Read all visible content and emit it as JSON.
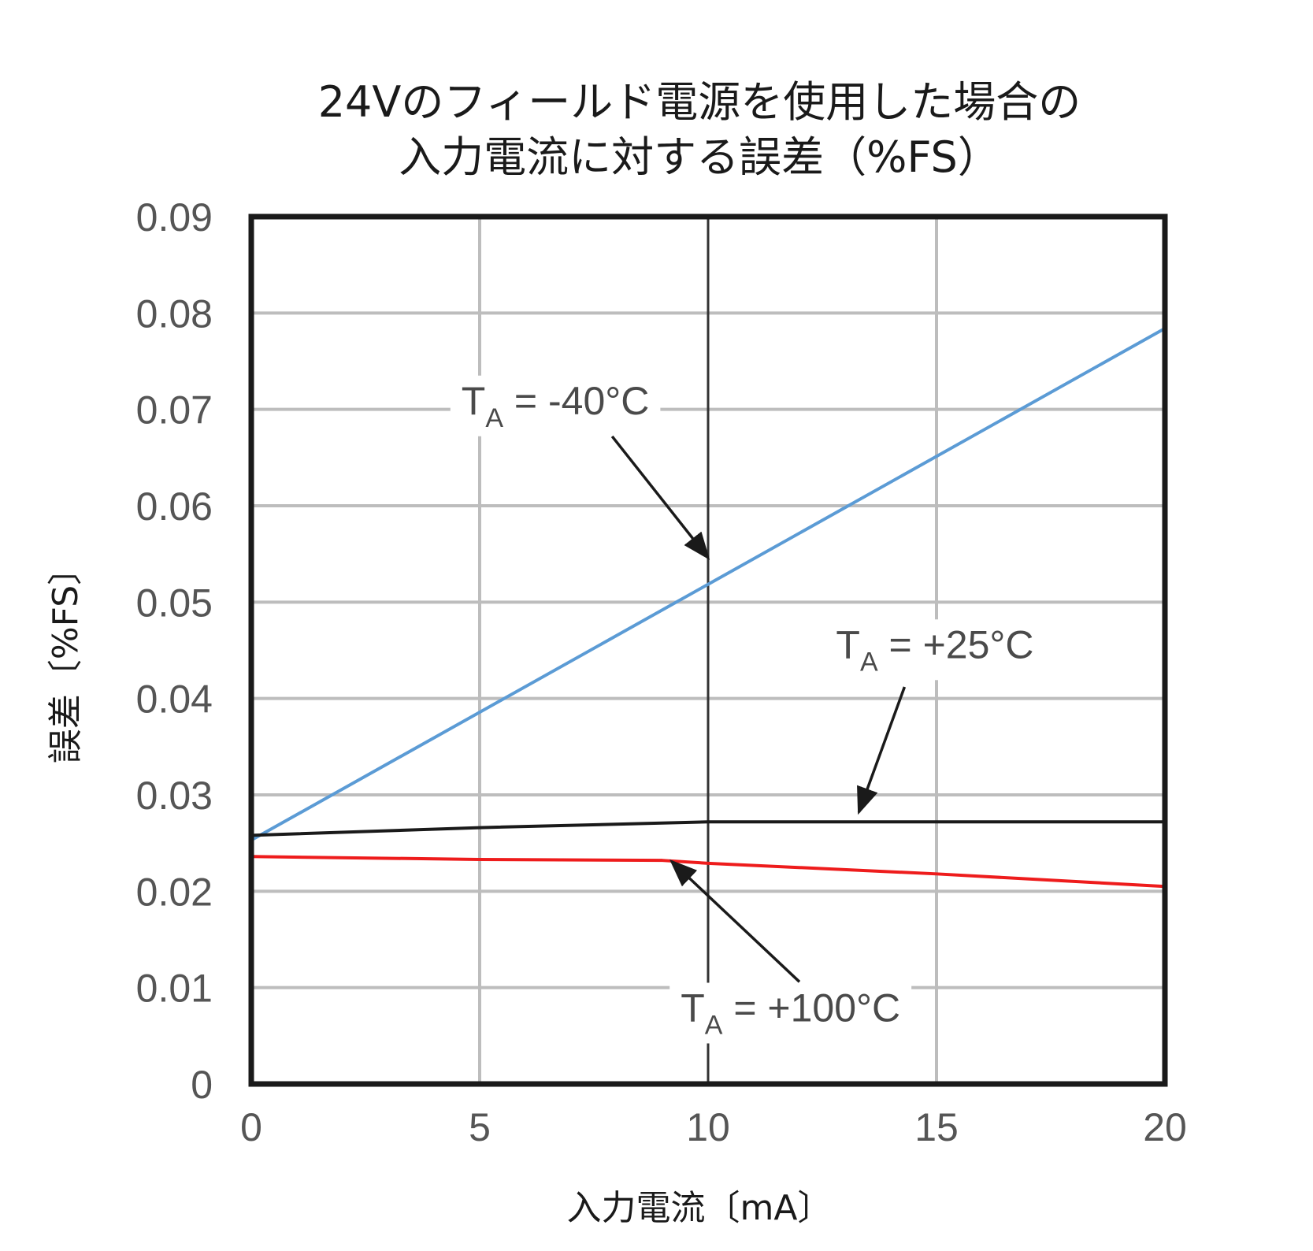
{
  "colors": {
    "background": "#ffffff",
    "grid_minor": "#bdbdbd",
    "grid_major": "#333333",
    "frame": "#1a1a1a",
    "arrow": "#1a1a1a"
  },
  "chart_data": {
    "type": "line",
    "title_lines": [
      "24Vのフィールド電源を使用した場合の",
      "入力電流に対する誤差（%FS）"
    ],
    "xlabel": "入力電流〔mA〕",
    "ylabel": "誤差〔%FS〕",
    "xlim": [
      0,
      20
    ],
    "ylim": [
      0,
      0.09
    ],
    "x_ticks": [
      0,
      5,
      10,
      15,
      20
    ],
    "x_tick_labels": [
      "0",
      "5",
      "10",
      "15",
      "20"
    ],
    "y_ticks": [
      0,
      0.01,
      0.02,
      0.03,
      0.04,
      0.05,
      0.06,
      0.07,
      0.08,
      0.09
    ],
    "y_tick_labels": [
      "0",
      "0.01",
      "0.02",
      "0.03",
      "0.04",
      "0.05",
      "0.06",
      "0.07",
      "0.08",
      "0.09"
    ],
    "grid": true,
    "series": [
      {
        "name": "TA = -40°C",
        "color": "#5b9bd5",
        "x": [
          0,
          20
        ],
        "y": [
          0.0253,
          0.0784
        ]
      },
      {
        "name": "TA = +25°C",
        "color": "#1a1a1a",
        "x": [
          0,
          5,
          10,
          15,
          20
        ],
        "y": [
          0.0258,
          0.0266,
          0.0272,
          0.0272,
          0.0272
        ]
      },
      {
        "name": "TA = +100°C",
        "color": "#ee1c1c",
        "x": [
          0,
          5,
          9,
          10,
          15,
          20
        ],
        "y": [
          0.0236,
          0.0233,
          0.0232,
          0.0229,
          0.0218,
          0.0205
        ]
      }
    ],
    "annotations": [
      {
        "main": "T",
        "sub": "A",
        "rest": " = -40°C",
        "label_x": 4.6,
        "label_y": 0.0695,
        "arrow_from": [
          7.9,
          0.0672
        ],
        "arrow_to": [
          10.0,
          0.0546
        ]
      },
      {
        "main": "T",
        "sub": "A",
        "rest": " = +25°C",
        "label_x": 12.8,
        "label_y": 0.0442,
        "arrow_from": [
          14.3,
          0.0412
        ],
        "arrow_to": [
          13.3,
          0.0282
        ]
      },
      {
        "main": "T",
        "sub": "A",
        "rest": " = +100°C",
        "label_x": 9.4,
        "label_y": 0.0065,
        "arrow_from": [
          12.0,
          0.0106
        ],
        "arrow_to": [
          9.2,
          0.0231
        ]
      }
    ]
  }
}
